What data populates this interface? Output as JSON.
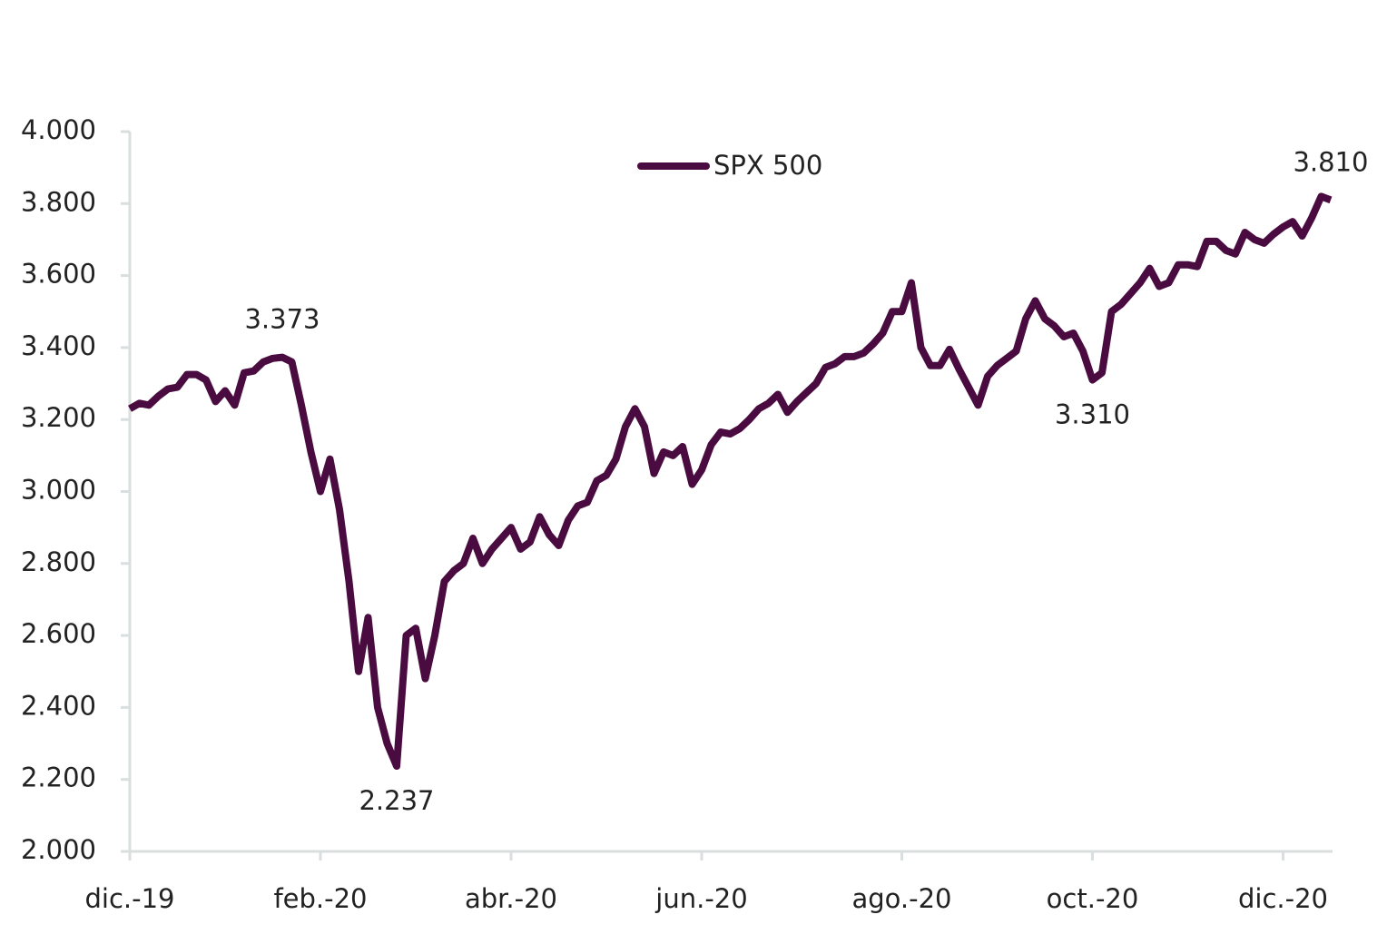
{
  "chart_data": {
    "type": "line",
    "categories": [
      "dic.-19",
      null,
      null,
      null,
      null,
      null,
      null,
      null,
      null,
      null,
      null,
      null,
      null,
      null,
      null,
      null,
      null,
      null,
      null,
      null,
      "feb.-20",
      null,
      null,
      null,
      null,
      null,
      null,
      null,
      null,
      null,
      null,
      null,
      null,
      null,
      null,
      null,
      null,
      null,
      null,
      null,
      "abr.-20",
      null,
      null,
      null,
      null,
      null,
      null,
      null,
      null,
      null,
      null,
      null,
      null,
      null,
      null,
      null,
      null,
      null,
      null,
      null,
      "jun.-20",
      null,
      null,
      null,
      null,
      null,
      null,
      null,
      null,
      null,
      null,
      null,
      null,
      null,
      null,
      null,
      null,
      null,
      null,
      null,
      null,
      "ago.-20",
      null,
      null,
      null,
      null,
      null,
      null,
      null,
      null,
      null,
      null,
      null,
      null,
      null,
      null,
      null,
      null,
      null,
      null,
      null,
      "oct.-20",
      null,
      null,
      null,
      null,
      null,
      null,
      null,
      null,
      null,
      null,
      null,
      null,
      null,
      null,
      null,
      null,
      null,
      null,
      null,
      "dic.-20",
      null,
      null,
      null,
      null,
      null
    ],
    "series": [
      {
        "name": "SPX 500",
        "color": "#4a0b40",
        "values": [
          3230,
          3245,
          3240,
          3265,
          3285,
          3290,
          3325,
          3325,
          3310,
          3250,
          3280,
          3240,
          3330,
          3335,
          3360,
          3370,
          3373,
          3360,
          3240,
          3110,
          3000,
          3090,
          2950,
          2750,
          2500,
          2650,
          2400,
          2300,
          2237,
          2600,
          2620,
          2480,
          2600,
          2750,
          2780,
          2800,
          2870,
          2800,
          2840,
          2870,
          2900,
          2840,
          2860,
          2930,
          2880,
          2850,
          2920,
          2960,
          2970,
          3030,
          3045,
          3090,
          3180,
          3230,
          3180,
          3050,
          3110,
          3100,
          3125,
          3020,
          3060,
          3130,
          3165,
          3160,
          3175,
          3200,
          3230,
          3245,
          3270,
          3220,
          3250,
          3275,
          3300,
          3345,
          3355,
          3375,
          3375,
          3385,
          3410,
          3440,
          3500,
          3500,
          3580,
          3400,
          3350,
          3350,
          3395,
          3340,
          3290,
          3240,
          3320,
          3350,
          3370,
          3390,
          3480,
          3530,
          3480,
          3460,
          3430,
          3440,
          3390,
          3310,
          3330,
          3500,
          3520,
          3550,
          3580,
          3620,
          3570,
          3580,
          3630,
          3630,
          3625,
          3695,
          3695,
          3670,
          3660,
          3720,
          3700,
          3690,
          3715,
          3735,
          3750,
          3710,
          3760,
          3820,
          3810
        ],
        "value_labels": [
          null,
          null,
          null,
          null,
          null,
          null,
          null,
          null,
          null,
          null,
          null,
          null,
          null,
          null,
          null,
          null,
          "3.373",
          null,
          null,
          null,
          null,
          null,
          null,
          null,
          null,
          null,
          null,
          null,
          "2.237",
          null,
          null,
          null,
          null,
          null,
          null,
          null,
          null,
          null,
          null,
          null,
          null,
          null,
          null,
          null,
          null,
          null,
          null,
          null,
          null,
          null,
          null,
          null,
          null,
          null,
          null,
          null,
          null,
          null,
          null,
          null,
          null,
          null,
          null,
          null,
          null,
          null,
          null,
          null,
          null,
          null,
          null,
          null,
          null,
          null,
          null,
          null,
          null,
          null,
          null,
          null,
          null,
          null,
          null,
          null,
          null,
          null,
          null,
          null,
          null,
          null,
          null,
          null,
          null,
          null,
          null,
          null,
          null,
          null,
          null,
          null,
          null,
          "3.310",
          null,
          null,
          null,
          null,
          null,
          null,
          null,
          null,
          null,
          null,
          null,
          null,
          null,
          null,
          null,
          null,
          null,
          null,
          null,
          null,
          null,
          null,
          null,
          null,
          "3.810"
        ]
      }
    ],
    "ylim": [
      2000,
      4000
    ],
    "yticks": [
      {
        "value": 2000,
        "label": "2.000"
      },
      {
        "value": 2200,
        "label": "2.200"
      },
      {
        "value": 2400,
        "label": "2.400"
      },
      {
        "value": 2600,
        "label": "2.600"
      },
      {
        "value": 2800,
        "label": "2.800"
      },
      {
        "value": 3000,
        "label": "3.000"
      },
      {
        "value": 3200,
        "label": "3.200"
      },
      {
        "value": 3400,
        "label": "3.400"
      },
      {
        "value": 3600,
        "label": "3.600"
      },
      {
        "value": 3800,
        "label": "3.800"
      },
      {
        "value": 4000,
        "label": "4.000"
      }
    ],
    "legend": "top-center"
  }
}
